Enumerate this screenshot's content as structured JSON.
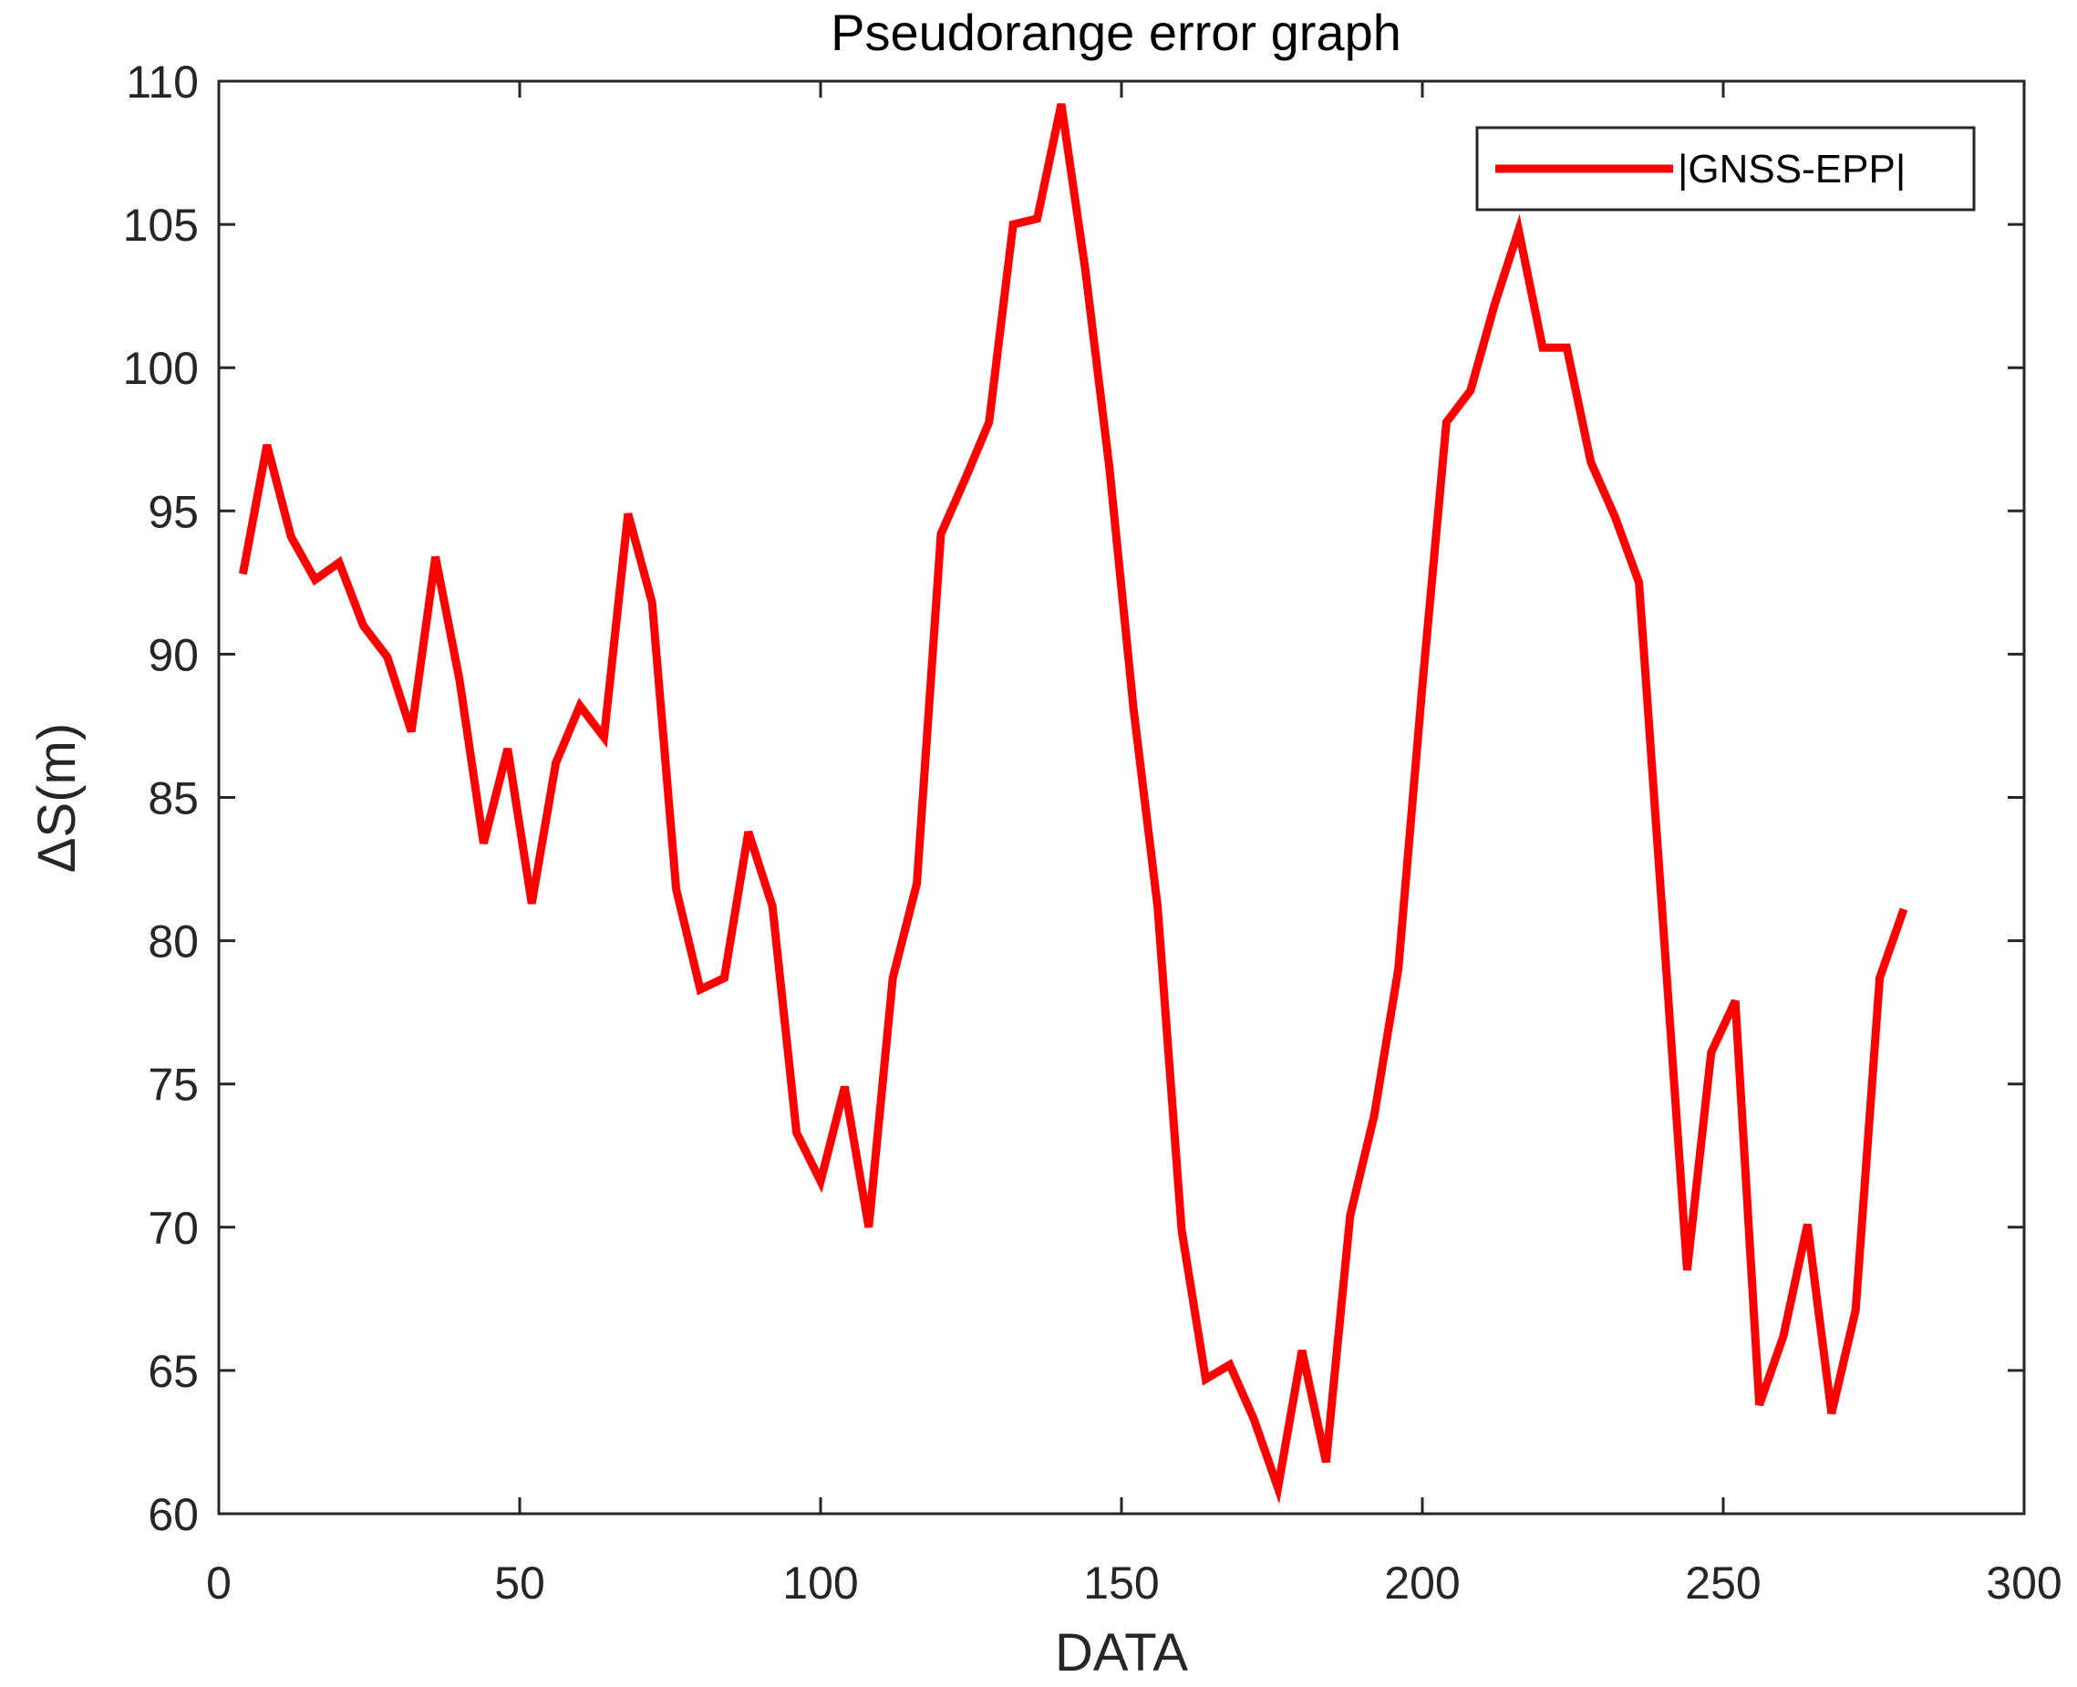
{
  "chart_data": {
    "type": "line",
    "title": "Pseudorange error graph",
    "xlabel": "DATA",
    "ylabel": "ΔS(m)",
    "xlim": [
      0,
      300
    ],
    "ylim": [
      60,
      110
    ],
    "xticks": [
      0,
      50,
      100,
      150,
      200,
      250,
      300
    ],
    "yticks": [
      60,
      65,
      70,
      75,
      80,
      85,
      90,
      95,
      100,
      105,
      110
    ],
    "xtick_labels": [
      "0",
      "50",
      "100",
      "150",
      "200",
      "250",
      "300"
    ],
    "ytick_labels": [
      "60",
      "65",
      "70",
      "75",
      "80",
      "85",
      "90",
      "95",
      "100",
      "105",
      "110"
    ],
    "grid": false,
    "legend_position": "top-right",
    "series": [
      {
        "name": "|GNSS-EPP|",
        "color": "#ff0000",
        "x": [
          4,
          8,
          12,
          16,
          20,
          24,
          28,
          32,
          36,
          40,
          44,
          48,
          52,
          56,
          60,
          64,
          68,
          72,
          76,
          80,
          84,
          88,
          92,
          96,
          100,
          104,
          108,
          112,
          116,
          120,
          124,
          128,
          132,
          136,
          140,
          144,
          148,
          152,
          156,
          160,
          164,
          168,
          172,
          176,
          180,
          184,
          188,
          192,
          196,
          200,
          204,
          208,
          212,
          216,
          220,
          224,
          228,
          232,
          236,
          240,
          244,
          248,
          252,
          256,
          260,
          264,
          268,
          272,
          276,
          280
        ],
        "y": [
          92.8,
          97.3,
          94.1,
          92.6,
          93.2,
          91.0,
          89.9,
          87.3,
          93.4,
          89.1,
          83.4,
          86.7,
          81.3,
          86.2,
          88.2,
          87.1,
          94.9,
          91.8,
          81.8,
          78.3,
          78.7,
          83.8,
          81.2,
          73.3,
          71.6,
          74.9,
          70.0,
          78.7,
          82.0,
          94.2,
          96.1,
          98.1,
          105.0,
          105.2,
          109.2,
          103.4,
          96.5,
          88.1,
          81.2,
          69.9,
          64.7,
          65.2,
          63.3,
          60.9,
          65.7,
          61.8,
          70.4,
          73.9,
          79.0,
          88.9,
          98.1,
          99.2,
          102.2,
          104.8,
          100.7,
          100.7,
          96.7,
          94.8,
          92.5,
          80.6,
          68.5,
          76.1,
          77.9,
          63.8,
          66.2,
          70.1,
          63.5,
          67.1,
          78.7,
          81.1
        ]
      }
    ]
  }
}
